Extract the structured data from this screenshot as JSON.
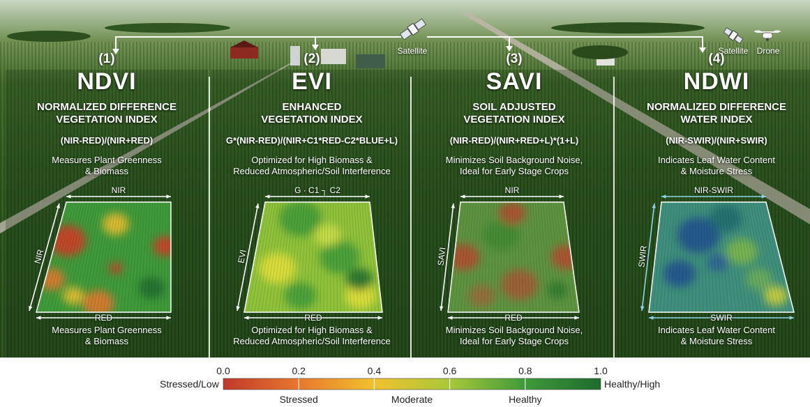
{
  "header": {
    "satellite_label": "Satellite",
    "satellite_label_right": "Satellite",
    "drone_label": "Drone"
  },
  "panels": [
    {
      "number": "(1)",
      "abbr": "NDVI",
      "name_line1": "NORMALIZED DIFFERENCE",
      "name_line2": "VEGETATION INDEX",
      "formula": "(NIR-RED)/(NIR+RED)",
      "desc_line1": "Measures Plant Greenness",
      "desc_line2": "& Biomass",
      "axis_top": "NIR",
      "axis_side": "NIR",
      "axis_bottom": "RED",
      "bottom_line1": "Measures Plant Greenness",
      "bottom_line2": "& Biomass",
      "map_style": "ndvi"
    },
    {
      "number": "(2)",
      "abbr": "EVI",
      "name_line1": "ENHANCED",
      "name_line2": "VEGETATION INDEX",
      "formula": "G*(NIR-RED)/(NIR+C1*RED-C2*BLUE+L)",
      "desc_line1": "Optimized for High Biomass &",
      "desc_line2": "Reduced Atmospheric/Soil Interference",
      "axis_top": "G · C1 ┐ C2",
      "axis_side": "EVI",
      "axis_bottom": "RED",
      "bottom_line1": "Optimized for High Biomass &",
      "bottom_line2": "Reduced Atmospheric/Soil Interference",
      "map_style": "evi"
    },
    {
      "number": "(3)",
      "abbr": "SAVI",
      "name_line1": "SOIL ADJUSTED",
      "name_line2": "VEGETATION INDEX",
      "formula": "(NIR-RED)/(NIR+RED+L)*(1+L)",
      "desc_line1": "Minimizes Soil Background Noise,",
      "desc_line2": "Ideal for Early Stage Crops",
      "axis_top": "NIR",
      "axis_side": "SAVI",
      "axis_bottom": "RED",
      "bottom_line1": "Minimizes Soil Background Noise,",
      "bottom_line2": "Ideal for Early Stage Crops",
      "map_style": "savi"
    },
    {
      "number": "(4)",
      "abbr": "NDWI",
      "name_line1": "NORMALIZED DIFFERENCE",
      "name_line2": "WATER INDEX",
      "formula": "(NIR-SWIR)/(NIR+SWIR)",
      "desc_line1": "Indicates Leaf Water Content",
      "desc_line2": "& Moisture Stress",
      "axis_top": "NIR-SWIR",
      "axis_side": "SWIR",
      "axis_bottom": "SWIR",
      "bottom_line1": "Indicates Leaf Water Content",
      "bottom_line2": "& Moisture Stress",
      "map_style": "ndwi"
    }
  ],
  "legend": {
    "ticks": [
      "0.0",
      "0.2",
      "0.4",
      "0.6",
      "0.8",
      "1.0"
    ],
    "left_label": "Stressed/Low",
    "right_label": "Healthy/High",
    "categories": [
      "Stressed",
      "Moderate",
      "Healthy"
    ],
    "colors": [
      "#c0392b",
      "#e8772e",
      "#f2c12e",
      "#a8c83a",
      "#3f9a3a",
      "#1e6b2e"
    ]
  }
}
